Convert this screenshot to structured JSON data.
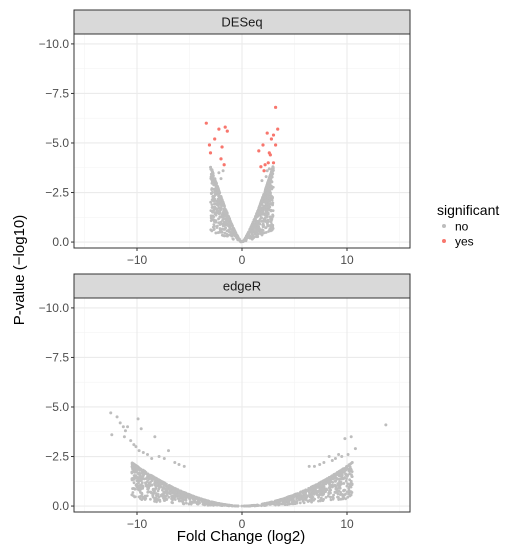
{
  "chart_data": {
    "type": "scatter",
    "xlabel": "Fold Change (log2)",
    "ylabel": "P-value (−log10)",
    "xlim": [
      -16,
      16
    ],
    "ylim": [
      -10.5,
      0.3
    ],
    "x_ticks": [
      {
        "value": -10,
        "label": "−10"
      },
      {
        "value": 0,
        "label": "0"
      },
      {
        "value": 10,
        "label": "10"
      }
    ],
    "y_ticks": [
      {
        "value": -10,
        "label": "−10.0"
      },
      {
        "value": -7.5,
        "label": "−7.5"
      },
      {
        "value": -5,
        "label": "−5.0"
      },
      {
        "value": -2.5,
        "label": "−2.5"
      },
      {
        "value": 0,
        "label": "0.0"
      }
    ],
    "grid": true,
    "legend": {
      "title": "significant",
      "position": "right",
      "entries": [
        {
          "label": "no",
          "color": "#bdbdbd"
        },
        {
          "label": "yes",
          "color": "#f8766d"
        }
      ]
    },
    "colors": {
      "panel_background": "#ffffff",
      "strip_background": "#d9d9d9",
      "grid": "#ebebeb",
      "no": "#bdbdbd",
      "yes": "#f8766d"
    },
    "panels": [
      {
        "strip": "DESeq",
        "significant_points": [
          [
            -3.4,
            -6.0
          ],
          [
            -3.1,
            -4.9
          ],
          [
            -3.0,
            -4.5
          ],
          [
            -2.6,
            -5.2
          ],
          [
            -2.2,
            -5.7
          ],
          [
            -2.0,
            -4.2
          ],
          [
            -1.9,
            -4.8
          ],
          [
            -1.7,
            -3.9
          ],
          [
            -1.6,
            -5.8
          ],
          [
            -1.4,
            -5.6
          ],
          [
            1.6,
            -4.6
          ],
          [
            1.8,
            -3.8
          ],
          [
            2.0,
            -4.9
          ],
          [
            2.2,
            -3.9
          ],
          [
            2.4,
            -5.5
          ],
          [
            2.5,
            -4.0
          ],
          [
            2.6,
            -4.5
          ],
          [
            2.7,
            -4.4
          ],
          [
            2.8,
            -5.2
          ],
          [
            3.0,
            -5.4
          ],
          [
            3.0,
            -4.0
          ],
          [
            3.2,
            -4.9
          ],
          [
            3.4,
            -5.7
          ],
          [
            3.2,
            -6.8
          ],
          [
            2.1,
            -3.6
          ]
        ],
        "cloud": {
          "x_max": 3.0,
          "y_min": -3.9,
          "spread": 1.4
        },
        "scattered_points": [
          [
            -2.2,
            -3.5
          ],
          [
            -2.0,
            -3.2
          ],
          [
            -1.8,
            -3.6
          ],
          [
            2.3,
            -3.3
          ],
          [
            2.6,
            -3.7
          ],
          [
            1.9,
            -3.1
          ],
          [
            2.4,
            -3.6
          ]
        ]
      },
      {
        "strip": "edgeR",
        "significant_points": [],
        "cloud": {
          "x_max": 10.5,
          "y_min": -2.2,
          "spread": 1.0
        },
        "scattered_points": [
          [
            -12.5,
            -4.7
          ],
          [
            -12.4,
            -3.6
          ],
          [
            -11.9,
            -4.5
          ],
          [
            -11.6,
            -4.2
          ],
          [
            -11.3,
            -4.0
          ],
          [
            -11.1,
            -3.8
          ],
          [
            -11.2,
            -3.5
          ],
          [
            -10.9,
            -4.0
          ],
          [
            -10.6,
            -3.3
          ],
          [
            -10.3,
            -3.1
          ],
          [
            -10.1,
            -3.0
          ],
          [
            -9.9,
            -4.4
          ],
          [
            -9.8,
            -2.8
          ],
          [
            -9.6,
            -3.9
          ],
          [
            -9.4,
            -2.7
          ],
          [
            -9.0,
            -2.6
          ],
          [
            -8.6,
            -2.4
          ],
          [
            -8.3,
            -3.5
          ],
          [
            -7.9,
            -2.5
          ],
          [
            -7.4,
            -2.4
          ],
          [
            -7.0,
            -2.8
          ],
          [
            -6.4,
            -2.2
          ],
          [
            -6.0,
            -2.1
          ],
          [
            -5.5,
            -2.0
          ],
          [
            13.7,
            -4.1
          ],
          [
            10.8,
            -2.9
          ],
          [
            10.4,
            -3.5
          ],
          [
            10.1,
            -2.6
          ],
          [
            9.8,
            -3.4
          ],
          [
            9.5,
            -2.5
          ],
          [
            9.2,
            -2.6
          ],
          [
            8.9,
            -2.4
          ],
          [
            8.6,
            -2.3
          ],
          [
            8.3,
            -2.5
          ],
          [
            7.8,
            -2.2
          ],
          [
            7.4,
            -2.1
          ],
          [
            6.9,
            -2.0
          ],
          [
            6.4,
            -2.0
          ],
          [
            10.5,
            -2.2
          ]
        ]
      }
    ]
  }
}
